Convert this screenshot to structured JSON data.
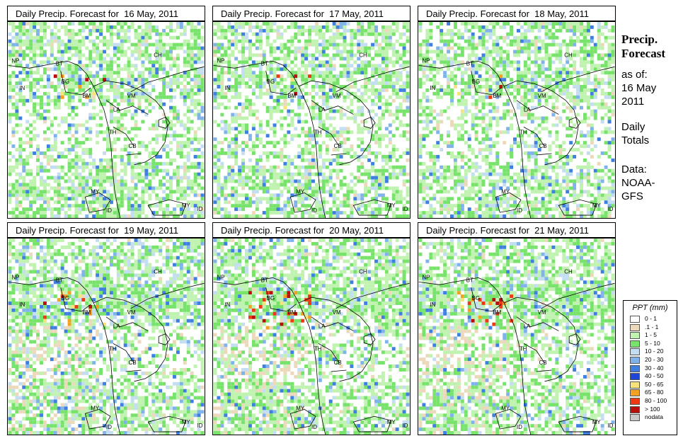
{
  "panels": [
    {
      "title": "Daily Precip. Forecast for  16 May, 2011"
    },
    {
      "title": "Daily Precip. Forecast for  17 May, 2011"
    },
    {
      "title": "Daily Precip. Forecast for  18 May, 2011"
    },
    {
      "title": "Daily Precip. Forecast for  19 May, 2011"
    },
    {
      "title": "Daily Precip. Forecast for  20 May, 2011"
    },
    {
      "title": "Daily Precip. Forecast for  21 May, 2011"
    }
  ],
  "map_labels": [
    "NP",
    "BT",
    "BG",
    "IN",
    "CH",
    "BM",
    "VM",
    "LA",
    "TH",
    "CB",
    "MY",
    "MY",
    "ID",
    "ID"
  ],
  "sidebar": {
    "heading_line1": "Precip.",
    "heading_line2": "Forecast",
    "asof": "as of:",
    "date_line1": "16 May",
    "date_line2": "2011",
    "daily_line1": "Daily",
    "daily_line2": "Totals",
    "data_line1": "Data:",
    "data_line2": "NOAA-",
    "data_line3": "GFS"
  },
  "legend": {
    "title": "PPT (mm)",
    "items": [
      {
        "label": "0 - 1",
        "color": "#ffffff"
      },
      {
        "label": ".1 - 1",
        "color": "#ecd9bc"
      },
      {
        "label": "1 - 5",
        "color": "#c0f2b0"
      },
      {
        "label": "5 - 10",
        "color": "#77e36b"
      },
      {
        "label": "10 - 20",
        "color": "#c3ddf1"
      },
      {
        "label": "20 - 30",
        "color": "#7fb3ea"
      },
      {
        "label": "30 - 40",
        "color": "#3f7fe0"
      },
      {
        "label": "40 - 50",
        "color": "#1e45d8"
      },
      {
        "label": "50 - 65",
        "color": "#f7e37b"
      },
      {
        "label": "65 - 80",
        "color": "#f2a122"
      },
      {
        "label": "80 - 100",
        "color": "#ee3a14"
      },
      {
        "label": "> 100",
        "color": "#b80f0a"
      },
      {
        "label": "nodata",
        "color": "#c8c8c8"
      }
    ]
  }
}
